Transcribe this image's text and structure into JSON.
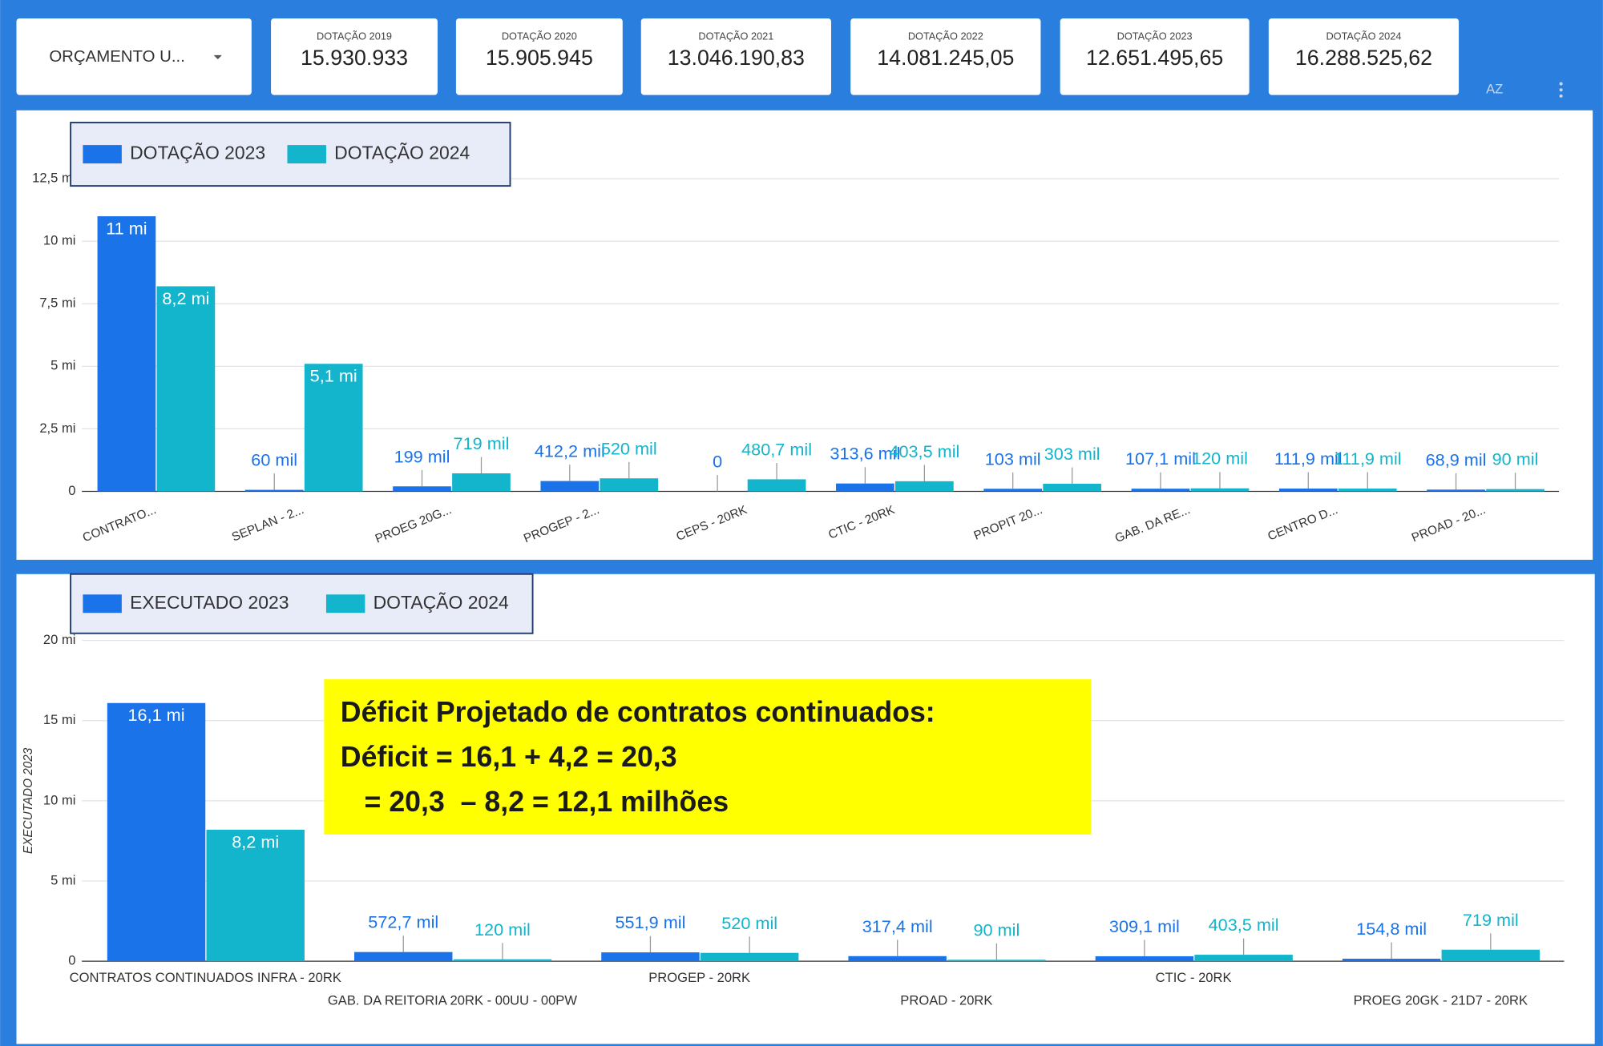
{
  "toolbar": {
    "dropdown": "ORÇAMENTO U...",
    "cards": [
      {
        "label": "DOTAÇÃO 2019",
        "value": "15.930.933"
      },
      {
        "label": "DOTAÇÃO 2020",
        "value": "15.905.945"
      },
      {
        "label": "DOTAÇÃO 2021",
        "value": "13.046.190,83"
      },
      {
        "label": "DOTAÇÃO 2022",
        "value": "14.081.245,05"
      },
      {
        "label": "DOTAÇÃO 2023",
        "value": "12.651.495,65"
      },
      {
        "label": "DOTAÇÃO 2024",
        "value": "16.288.525,62"
      }
    ]
  },
  "chart_data": [
    {
      "type": "bar",
      "categories": [
        "CONTRATO...",
        "SEPLAN - 2...",
        "PROEG 20G...",
        "PROGEP - 2...",
        "CEPS - 20RK",
        "CTIC - 20RK",
        "PROPIT 20...",
        "GAB. DA RE...",
        "CENTRO D...",
        "PROAD - 20..."
      ],
      "series": [
        {
          "name": "DOTAÇÃO 2023",
          "color": "#1a73e8",
          "values": [
            11000000,
            60000,
            199000,
            412200,
            0,
            313600,
            103000,
            107100,
            111900,
            68900
          ],
          "value_labels": [
            "11 mi",
            "60 mil",
            "199 mil",
            "412,2 mil",
            "0",
            "313,6 mil",
            "103 mil",
            "107,1 mil",
            "111,9 mil",
            "68,9 mil"
          ]
        },
        {
          "name": "DOTAÇÃO 2024",
          "color": "#12b5cb",
          "values": [
            8200000,
            5100000,
            719000,
            520000,
            480700,
            403500,
            303000,
            120000,
            111900,
            90000
          ],
          "value_labels": [
            "8,2 mi",
            "5,1 mi",
            "719 mil",
            "520 mil",
            "480,7 mil",
            "403,5 mil",
            "303 mil",
            "120 mil",
            "111,9 mil",
            "90 mil"
          ]
        }
      ],
      "ylim": [
        0,
        12500000
      ],
      "yticks": [
        0,
        {
          "value": 2500000,
          "label": "2,5 mi"
        },
        {
          "value": 5000000,
          "label": "5 mi"
        },
        {
          "value": 7500000,
          "label": "7,5 mi"
        },
        {
          "value": 10000000,
          "label": "10 mi"
        },
        {
          "value": 12500000,
          "label": "12,5 mi"
        }
      ],
      "grid": true,
      "legend": "top-left"
    },
    {
      "type": "bar",
      "y_label": "EXECUTADO 2023",
      "categories": [
        "CONTRATOS CONTINUADOS INFRA - 20RK",
        "GAB. DA REITORIA 20RK - 00UU - 00PW",
        "PROGEP - 20RK",
        "PROAD - 20RK",
        "CTIC - 20RK",
        "PROEG 20GK - 21D7 - 20RK"
      ],
      "series": [
        {
          "name": "EXECUTADO 2023",
          "color": "#1a73e8",
          "values": [
            16100000,
            572700,
            551900,
            317400,
            309100,
            154800
          ],
          "value_labels": [
            "16,1 mi",
            "572,7 mil",
            "551,9 mil",
            "317,4 mil",
            "309,1 mil",
            "154,8 mil"
          ]
        },
        {
          "name": "DOTAÇÃO 2024",
          "color": "#12b5cb",
          "values": [
            8200000,
            120000,
            520000,
            90000,
            403500,
            719000
          ],
          "value_labels": [
            "8,2 mi",
            "120 mil",
            "520 mil",
            "90 mil",
            "403,5 mil",
            "719 mil"
          ]
        }
      ],
      "ylim": [
        0,
        20000000
      ],
      "yticks": [
        0,
        {
          "value": 5000000,
          "label": "5 mi"
        },
        {
          "value": 10000000,
          "label": "10 mi"
        },
        {
          "value": 15000000,
          "label": "15 mi"
        },
        {
          "value": 20000000,
          "label": "20 mi"
        }
      ],
      "grid": true,
      "legend": "top-left",
      "annotation": [
        "Déficit Projetado de contratos continuados:",
        "Déficit = 16,1 + 4,2 = 20,3",
        "   = 20,3  – 8,2 = 12,1 milhões"
      ]
    }
  ]
}
